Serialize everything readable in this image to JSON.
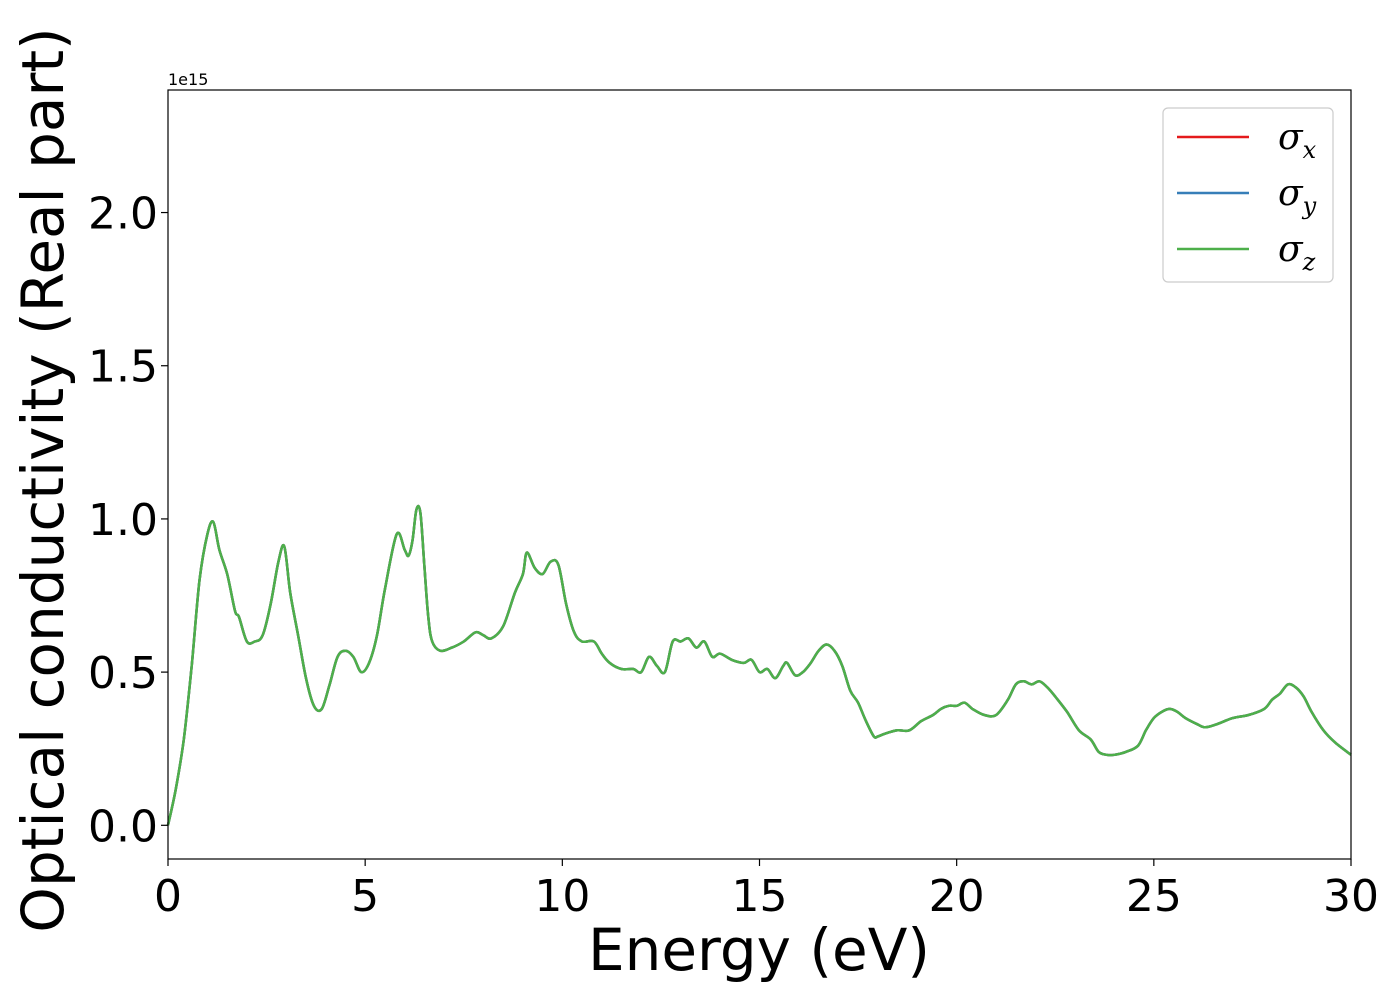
{
  "chart_data": {
    "type": "line",
    "title": "",
    "xlabel": "Energy (eV)",
    "ylabel": "Optical conductivity (Real part)",
    "y_offset_label": "1e15",
    "xlim": [
      0,
      30
    ],
    "ylim": [
      -0.11,
      2.4
    ],
    "x_ticks": [
      0,
      5,
      10,
      15,
      20,
      25,
      30
    ],
    "x_tick_labels": [
      "0",
      "5",
      "10",
      "15",
      "20",
      "25",
      "30"
    ],
    "y_ticks": [
      0.0,
      0.5,
      1.0,
      1.5,
      2.0
    ],
    "y_tick_labels": [
      "0.0",
      "0.5",
      "1.0",
      "1.5",
      "2.0"
    ],
    "grid": false,
    "legend_position": "top-right",
    "x": [
      0,
      0.2,
      0.4,
      0.6,
      0.8,
      1.0,
      1.15,
      1.3,
      1.5,
      1.7,
      1.8,
      2.0,
      2.2,
      2.4,
      2.6,
      2.8,
      2.95,
      3.1,
      3.3,
      3.5,
      3.7,
      3.9,
      4.1,
      4.3,
      4.5,
      4.7,
      4.9,
      5.1,
      5.3,
      5.5,
      5.8,
      6.0,
      6.1,
      6.2,
      6.3,
      6.4,
      6.5,
      6.6,
      6.7,
      6.9,
      7.2,
      7.5,
      7.8,
      8.0,
      8.2,
      8.5,
      8.8,
      9.0,
      9.1,
      9.3,
      9.5,
      9.7,
      9.9,
      10.1,
      10.3,
      10.5,
      10.8,
      11.0,
      11.2,
      11.5,
      11.8,
      12.0,
      12.2,
      12.4,
      12.6,
      12.8,
      13.0,
      13.2,
      13.4,
      13.6,
      13.8,
      14.0,
      14.3,
      14.6,
      14.8,
      15.0,
      15.2,
      15.4,
      15.6,
      15.7,
      15.9,
      16.1,
      16.3,
      16.5,
      16.7,
      16.9,
      17.1,
      17.3,
      17.5,
      17.7,
      17.9,
      18.0,
      18.2,
      18.5,
      18.8,
      19.1,
      19.4,
      19.6,
      19.8,
      20.0,
      20.2,
      20.4,
      20.7,
      21.0,
      21.3,
      21.5,
      21.7,
      21.9,
      22.1,
      22.3,
      22.5,
      22.8,
      23.1,
      23.4,
      23.6,
      23.8,
      24.0,
      24.3,
      24.6,
      24.8,
      25.0,
      25.2,
      25.4,
      25.6,
      25.8,
      26.1,
      26.3,
      26.6,
      27.0,
      27.4,
      27.8,
      28.0,
      28.2,
      28.4,
      28.6,
      28.8,
      29.0,
      29.3,
      29.6,
      30.0
    ],
    "series": [
      {
        "name": "σx",
        "name_base": "σ",
        "name_sub": "x",
        "color": "#e41a1c",
        "values": [
          0.0,
          0.12,
          0.28,
          0.52,
          0.8,
          0.95,
          0.99,
          0.9,
          0.82,
          0.7,
          0.68,
          0.6,
          0.6,
          0.62,
          0.72,
          0.86,
          0.91,
          0.76,
          0.62,
          0.48,
          0.39,
          0.38,
          0.46,
          0.55,
          0.57,
          0.55,
          0.5,
          0.53,
          0.62,
          0.77,
          0.95,
          0.9,
          0.88,
          0.93,
          1.03,
          1.02,
          0.85,
          0.68,
          0.6,
          0.57,
          0.58,
          0.6,
          0.63,
          0.62,
          0.61,
          0.65,
          0.76,
          0.82,
          0.89,
          0.84,
          0.82,
          0.86,
          0.85,
          0.72,
          0.63,
          0.6,
          0.6,
          0.56,
          0.53,
          0.51,
          0.51,
          0.5,
          0.55,
          0.52,
          0.5,
          0.6,
          0.6,
          0.61,
          0.58,
          0.6,
          0.55,
          0.56,
          0.54,
          0.53,
          0.54,
          0.5,
          0.51,
          0.48,
          0.52,
          0.53,
          0.49,
          0.5,
          0.53,
          0.57,
          0.59,
          0.57,
          0.52,
          0.44,
          0.4,
          0.34,
          0.29,
          0.29,
          0.3,
          0.31,
          0.31,
          0.34,
          0.36,
          0.38,
          0.39,
          0.39,
          0.4,
          0.38,
          0.36,
          0.36,
          0.41,
          0.46,
          0.47,
          0.46,
          0.47,
          0.45,
          0.42,
          0.37,
          0.31,
          0.28,
          0.24,
          0.23,
          0.23,
          0.24,
          0.26,
          0.31,
          0.35,
          0.37,
          0.38,
          0.37,
          0.35,
          0.33,
          0.32,
          0.33,
          0.35,
          0.36,
          0.38,
          0.41,
          0.43,
          0.46,
          0.45,
          0.42,
          0.37,
          0.31,
          0.27,
          0.23
        ]
      },
      {
        "name": "σy",
        "name_base": "σ",
        "name_sub": "y",
        "color": "#377eb8",
        "values": [
          0.0,
          0.12,
          0.28,
          0.52,
          0.8,
          0.95,
          0.99,
          0.9,
          0.82,
          0.7,
          0.68,
          0.6,
          0.6,
          0.62,
          0.72,
          0.86,
          0.91,
          0.76,
          0.62,
          0.48,
          0.39,
          0.38,
          0.46,
          0.55,
          0.57,
          0.55,
          0.5,
          0.53,
          0.62,
          0.77,
          0.95,
          0.9,
          0.88,
          0.93,
          1.03,
          1.02,
          0.85,
          0.68,
          0.6,
          0.57,
          0.58,
          0.6,
          0.63,
          0.62,
          0.61,
          0.65,
          0.76,
          0.82,
          0.89,
          0.84,
          0.82,
          0.86,
          0.85,
          0.72,
          0.63,
          0.6,
          0.6,
          0.56,
          0.53,
          0.51,
          0.51,
          0.5,
          0.55,
          0.52,
          0.5,
          0.6,
          0.6,
          0.61,
          0.58,
          0.6,
          0.55,
          0.56,
          0.54,
          0.53,
          0.54,
          0.5,
          0.51,
          0.48,
          0.52,
          0.53,
          0.49,
          0.5,
          0.53,
          0.57,
          0.59,
          0.57,
          0.52,
          0.44,
          0.4,
          0.34,
          0.29,
          0.29,
          0.3,
          0.31,
          0.31,
          0.34,
          0.36,
          0.38,
          0.39,
          0.39,
          0.4,
          0.38,
          0.36,
          0.36,
          0.41,
          0.46,
          0.47,
          0.46,
          0.47,
          0.45,
          0.42,
          0.37,
          0.31,
          0.28,
          0.24,
          0.23,
          0.23,
          0.24,
          0.26,
          0.31,
          0.35,
          0.37,
          0.38,
          0.37,
          0.35,
          0.33,
          0.32,
          0.33,
          0.35,
          0.36,
          0.38,
          0.41,
          0.43,
          0.46,
          0.45,
          0.42,
          0.37,
          0.31,
          0.27,
          0.23
        ]
      },
      {
        "name": "σz",
        "name_base": "σ",
        "name_sub": "z",
        "color": "#4daf4a",
        "values": [
          0.0,
          0.12,
          0.28,
          0.52,
          0.8,
          0.95,
          0.99,
          0.9,
          0.82,
          0.7,
          0.68,
          0.6,
          0.6,
          0.62,
          0.72,
          0.86,
          0.91,
          0.76,
          0.62,
          0.48,
          0.39,
          0.38,
          0.46,
          0.55,
          0.57,
          0.55,
          0.5,
          0.53,
          0.62,
          0.77,
          0.95,
          0.9,
          0.88,
          0.93,
          1.03,
          1.02,
          0.85,
          0.68,
          0.6,
          0.57,
          0.58,
          0.6,
          0.63,
          0.62,
          0.61,
          0.65,
          0.76,
          0.82,
          0.89,
          0.84,
          0.82,
          0.86,
          0.85,
          0.72,
          0.63,
          0.6,
          0.6,
          0.56,
          0.53,
          0.51,
          0.51,
          0.5,
          0.55,
          0.52,
          0.5,
          0.6,
          0.6,
          0.61,
          0.58,
          0.6,
          0.55,
          0.56,
          0.54,
          0.53,
          0.54,
          0.5,
          0.51,
          0.48,
          0.52,
          0.53,
          0.49,
          0.5,
          0.53,
          0.57,
          0.59,
          0.57,
          0.52,
          0.44,
          0.4,
          0.34,
          0.29,
          0.29,
          0.3,
          0.31,
          0.31,
          0.34,
          0.36,
          0.38,
          0.39,
          0.39,
          0.4,
          0.38,
          0.36,
          0.36,
          0.41,
          0.46,
          0.47,
          0.46,
          0.47,
          0.45,
          0.42,
          0.37,
          0.31,
          0.28,
          0.24,
          0.23,
          0.23,
          0.24,
          0.26,
          0.31,
          0.35,
          0.37,
          0.38,
          0.37,
          0.35,
          0.33,
          0.32,
          0.33,
          0.35,
          0.36,
          0.38,
          0.41,
          0.43,
          0.46,
          0.45,
          0.42,
          0.37,
          0.31,
          0.27,
          0.23
        ]
      }
    ]
  }
}
